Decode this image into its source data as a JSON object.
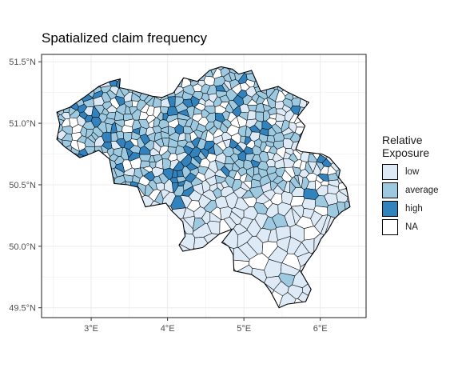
{
  "chart_data": {
    "type": "choropleth",
    "title": "Spatialized claim frequency",
    "xlabel": "",
    "ylabel": "",
    "x_ticks": [
      {
        "value": 3,
        "label": "3°E"
      },
      {
        "value": 4,
        "label": "4°E"
      },
      {
        "value": 5,
        "label": "5°E"
      },
      {
        "value": 6,
        "label": "6°E"
      }
    ],
    "y_ticks": [
      {
        "value": 49.5,
        "label": "49.5°N"
      },
      {
        "value": 50.0,
        "label": "50.0°N"
      },
      {
        "value": 50.5,
        "label": "50.5°N"
      },
      {
        "value": 51.0,
        "label": "51.0°N"
      },
      {
        "value": 51.5,
        "label": "51.5°N"
      }
    ],
    "xlim": [
      2.35,
      6.6
    ],
    "ylim": [
      49.42,
      51.56
    ],
    "grid": true,
    "legend_position": "right",
    "legend": {
      "title_line1": "Relative",
      "title_line2": "Exposure",
      "entries": [
        {
          "label": "low",
          "color": "#deebf7"
        },
        {
          "label": "average",
          "color": "#9ecae1"
        },
        {
          "label": "high",
          "color": "#3182bd"
        },
        {
          "label": "NA",
          "color": "#ffffff"
        }
      ]
    },
    "colors": {
      "panel_border": "#333333",
      "grid": "#ebebeb",
      "region_border": "#000000"
    }
  }
}
